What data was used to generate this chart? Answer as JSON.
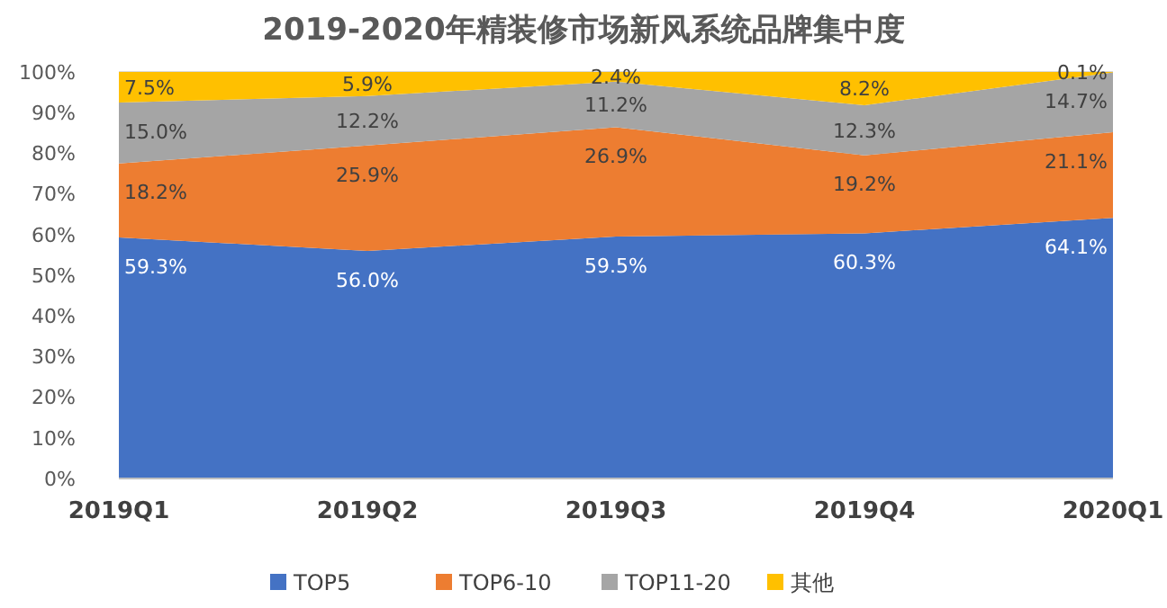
{
  "chart_data": {
    "type": "area",
    "title": "2019-2020年精装修市场新风系统品牌集中度",
    "stacked": true,
    "categories": [
      "2019Q1",
      "2019Q2",
      "2019Q3",
      "2019Q4",
      "2020Q1"
    ],
    "series": [
      {
        "name": "TOP5",
        "color": "#4472c4",
        "values": [
          59.3,
          56.0,
          59.5,
          60.3,
          64.1
        ],
        "value_labels": [
          "59.3%",
          "56.0%",
          "59.5%",
          "60.3%",
          "64.1%"
        ]
      },
      {
        "name": "TOP6-10",
        "color": "#ed7d31",
        "values": [
          18.2,
          25.9,
          26.9,
          19.2,
          21.1
        ],
        "value_labels": [
          "18.2%",
          "25.9%",
          "26.9%",
          "19.2%",
          "21.1%"
        ]
      },
      {
        "name": "TOP11-20",
        "color": "#a5a5a5",
        "values": [
          15.0,
          12.2,
          11.2,
          12.3,
          14.7
        ],
        "value_labels": [
          "15.0%",
          "12.2%",
          "11.2%",
          "12.3%",
          "14.7%"
        ]
      },
      {
        "name": "其他",
        "color": "#ffc000",
        "values": [
          7.5,
          5.9,
          2.4,
          8.2,
          0.1
        ],
        "value_labels": [
          "7.5%",
          "5.9%",
          "2.4%",
          "8.2%",
          "0.1%"
        ]
      }
    ],
    "ylim": [
      0,
      100
    ],
    "yticks": [
      {
        "value": 0,
        "label": "0%"
      },
      {
        "value": 10,
        "label": "10%"
      },
      {
        "value": 20,
        "label": "20%"
      },
      {
        "value": 30,
        "label": "30%"
      },
      {
        "value": 40,
        "label": "40%"
      },
      {
        "value": 50,
        "label": "50%"
      },
      {
        "value": 60,
        "label": "60%"
      },
      {
        "value": 70,
        "label": "70%"
      },
      {
        "value": 80,
        "label": "80%"
      },
      {
        "value": 90,
        "label": "90%"
      },
      {
        "value": 100,
        "label": "100%"
      }
    ],
    "grid": "y",
    "legend": "bottom"
  }
}
